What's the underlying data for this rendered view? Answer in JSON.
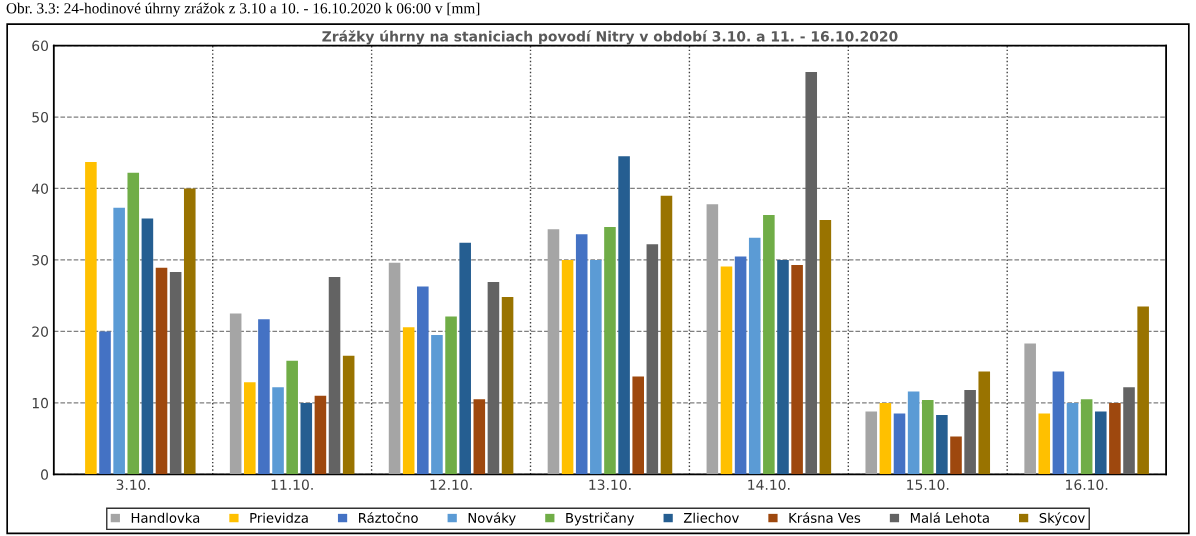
{
  "chart_data": {
    "type": "bar",
    "title": "Zrážky úhrny na staniciach povodí Nitry v období 3.10. a 11. - 16.10.2020",
    "annotations": [
      "Obr. 3.3: 24-hodinové úhrny zrážok z 3.10 a 10. - 16.10.2020 k 06:00 v [mm]"
    ],
    "categories": [
      "3.10.",
      "11.10.",
      "12.10.",
      "13.10.",
      "14.10.",
      "15.10.",
      "16.10."
    ],
    "series": [
      {
        "name": "Handlovka",
        "color": "#a5a5a5",
        "values": [
          null,
          22.5,
          29.6,
          34.3,
          37.8,
          8.8,
          18.3
        ]
      },
      {
        "name": "Prievidza",
        "color": "#ffc000",
        "values": [
          43.7,
          12.9,
          20.6,
          30,
          29.1,
          10,
          8.5
        ]
      },
      {
        "name": "Ráztočno",
        "color": "#4472c4",
        "values": [
          20,
          21.7,
          26.3,
          33.6,
          30.5,
          8.5,
          14.4
        ]
      },
      {
        "name": "Nováky",
        "color": "#5b9bd5",
        "values": [
          37.3,
          12.2,
          19.5,
          30,
          33.1,
          11.6,
          10
        ]
      },
      {
        "name": "Bystričany",
        "color": "#70ad47",
        "values": [
          42.2,
          15.9,
          22.1,
          34.6,
          36.3,
          10.4,
          10.5
        ]
      },
      {
        "name": "Zliechov",
        "color": "#255e91",
        "values": [
          35.8,
          10,
          32.4,
          44.5,
          30,
          8.3,
          8.8
        ]
      },
      {
        "name": "Krásna Ves",
        "color": "#9e480e",
        "values": [
          28.9,
          11,
          10.5,
          13.7,
          29.3,
          5.3,
          10
        ]
      },
      {
        "name": "Malá Lehota",
        "color": "#636363",
        "values": [
          28.3,
          27.6,
          26.9,
          32.2,
          56.3,
          11.8,
          12.2
        ]
      },
      {
        "name": "Skýcov",
        "color": "#997300",
        "values": [
          40,
          16.6,
          24.8,
          39,
          35.6,
          14.4,
          23.5
        ]
      }
    ],
    "ylim": [
      0,
      60
    ],
    "yticks": [
      0,
      10,
      20,
      30,
      40,
      50,
      60
    ],
    "grid": true,
    "legend": "bottom"
  }
}
